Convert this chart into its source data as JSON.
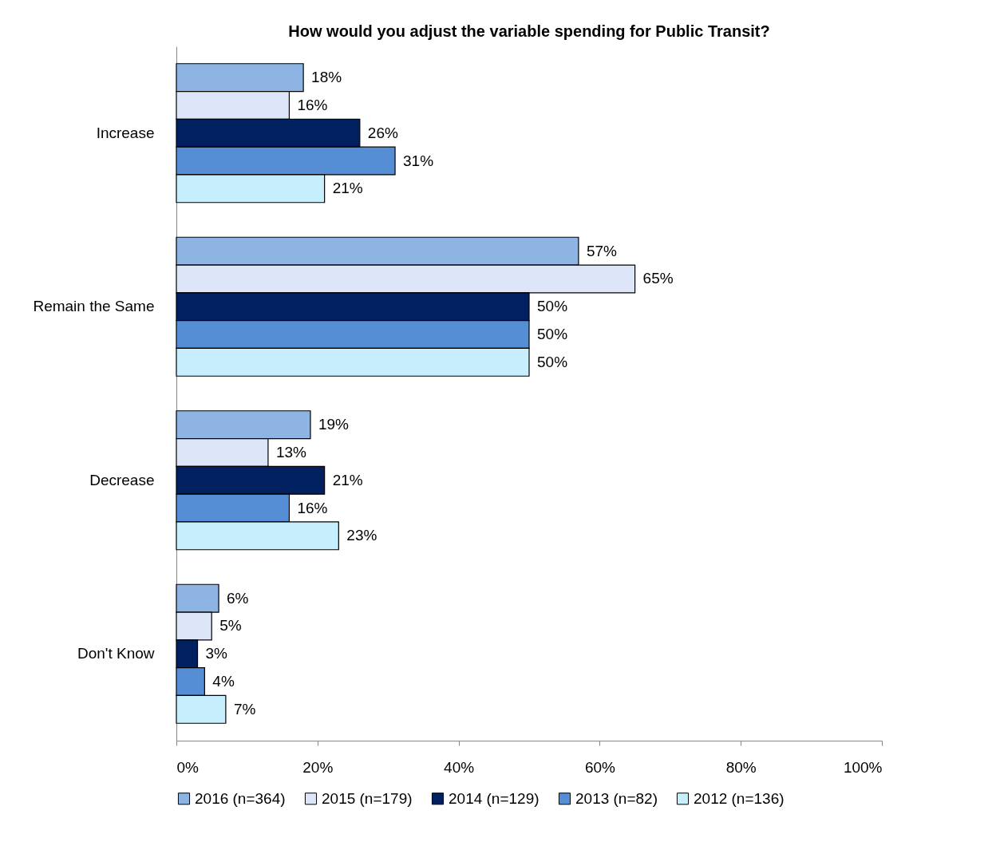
{
  "chart_data": {
    "type": "bar",
    "orientation": "horizontal",
    "title": "How would you adjust the variable spending for Public Transit?",
    "categories": [
      "Increase",
      "Remain the Same",
      "Decrease",
      "Don't Know"
    ],
    "series": [
      {
        "name": "2016 (n=364)",
        "color": "#8db4e2",
        "values": [
          18,
          57,
          19,
          6
        ],
        "value_labels": [
          "18%",
          "57%",
          "19%",
          "6%"
        ]
      },
      {
        "name": "2015 (n=179)",
        "color": "#dce6f8",
        "values": [
          16,
          65,
          13,
          5
        ],
        "value_labels": [
          "16%",
          "65%",
          "13%",
          "5%"
        ]
      },
      {
        "name": "2014 (n=129)",
        "color": "#002060",
        "values": [
          26,
          50,
          21,
          3
        ],
        "value_labels": [
          "26%",
          "50%",
          "21%",
          "3%"
        ]
      },
      {
        "name": "2013 (n=82)",
        "color": "#558ed5",
        "values": [
          31,
          50,
          16,
          4
        ],
        "value_labels": [
          "31%",
          "50%",
          "16%",
          "4%"
        ]
      },
      {
        "name": "2012 (n=136)",
        "color": "#c6eefc",
        "values": [
          21,
          50,
          23,
          7
        ],
        "value_labels": [
          "21%",
          "50%",
          "23%",
          "7%"
        ]
      }
    ],
    "xlim": [
      0,
      100
    ],
    "xticks": [
      {
        "value": 0,
        "label": "0%"
      },
      {
        "value": 20,
        "label": "20%"
      },
      {
        "value": 40,
        "label": "40%"
      },
      {
        "value": 60,
        "label": "60%"
      },
      {
        "value": 80,
        "label": "80%"
      },
      {
        "value": 100,
        "label": "100%"
      }
    ],
    "legend": "bottom",
    "grid": false
  }
}
